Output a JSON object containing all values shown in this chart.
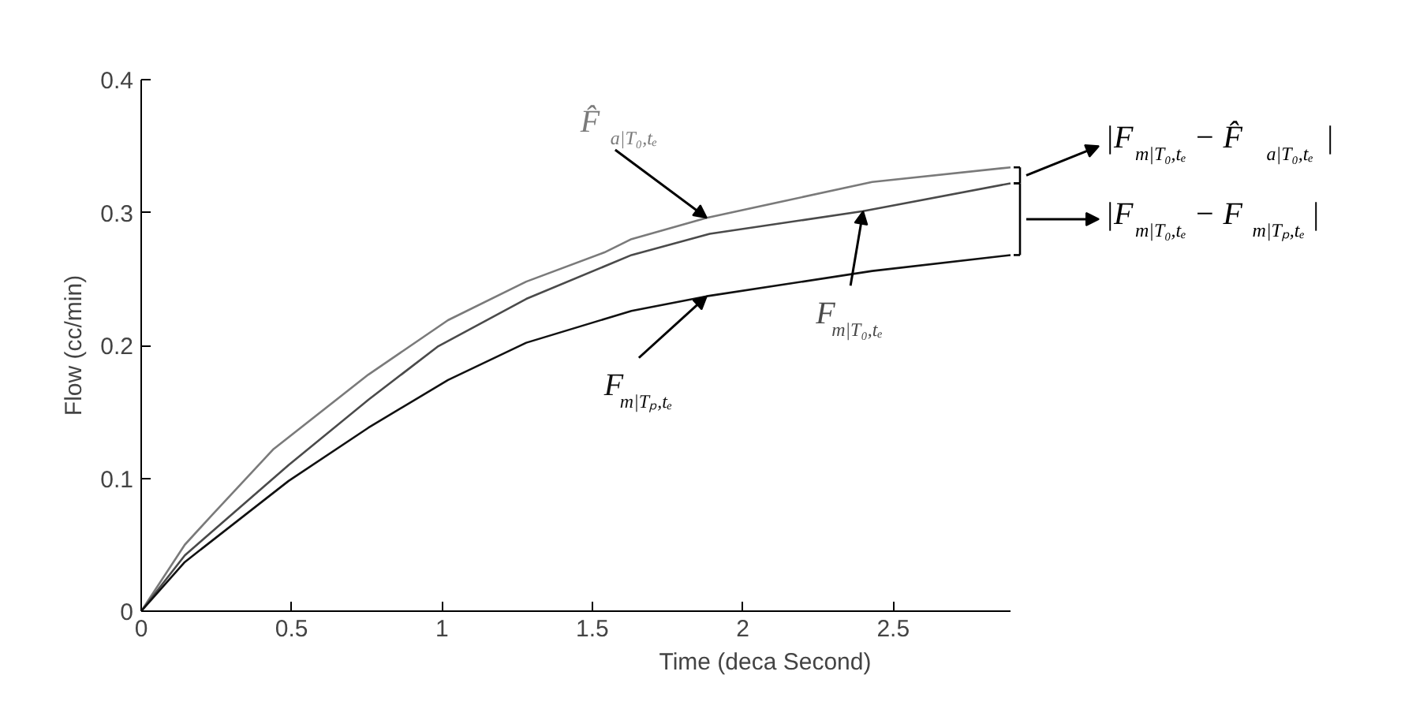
{
  "chart_data": {
    "type": "line",
    "xlabel": "Time (deca Second)",
    "ylabel": "Flow (cc/min)",
    "xlim": [
      0,
      2.89
    ],
    "ylim": [
      0,
      0.4
    ],
    "xticks": [
      0,
      0.5,
      1,
      1.5,
      2,
      2.5
    ],
    "yticks": [
      0,
      0.1,
      0.2,
      0.3,
      0.4
    ],
    "grid": false,
    "marker": "none",
    "line_style": "solid",
    "series": [
      {
        "name": "F̂$_{a|T₀,tₑ}$",
        "color": "#7a7a7a",
        "x": [
          0,
          0.145,
          0.23,
          0.44,
          0.755,
          1.02,
          1.28,
          1.54,
          1.63,
          1.88,
          2.43,
          2.89
        ],
        "values": [
          0,
          0.05,
          0.071,
          0.122,
          0.178,
          0.219,
          0.248,
          0.27,
          0.28,
          0.296,
          0.323,
          0.334
        ]
      },
      {
        "name": "F$_{m|T₀,tₑ}$",
        "color": "#4a4a4a",
        "x": [
          0,
          0.145,
          0.49,
          0.755,
          0.985,
          1.28,
          1.63,
          1.89,
          2.4,
          2.89
        ],
        "values": [
          0,
          0.042,
          0.11,
          0.159,
          0.199,
          0.235,
          0.268,
          0.284,
          0.301,
          0.322
        ]
      },
      {
        "name": "F$_{m|Tₚ,tₑ}$",
        "color": "#111111",
        "x": [
          0,
          0.145,
          0.49,
          0.755,
          1.02,
          1.28,
          1.63,
          1.88,
          2.43,
          2.89
        ],
        "values": [
          0,
          0.037,
          0.098,
          0.138,
          0.174,
          0.202,
          0.226,
          0.237,
          0.256,
          0.268
        ]
      }
    ],
    "annotations": [
      "|F$_{m|T₀,tₑ}$ − F̂$_{a|T₀,tₑ}$|",
      "|F$_{m|T₀,tₑ}$ − F$_{m|Tₚ,tₑ}$|"
    ]
  }
}
